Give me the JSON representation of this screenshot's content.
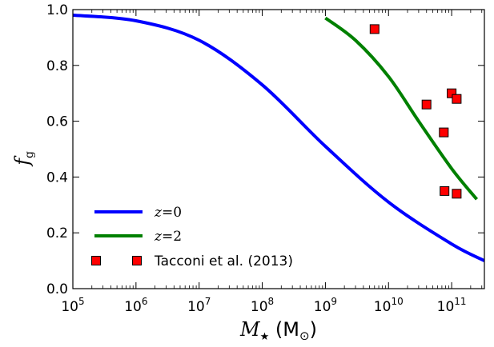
{
  "chart_data": {
    "type": "line",
    "xlabel": "M",
    "xlabel_sub": "★",
    "xlabel_unit": "(M",
    "xlabel_unit_sub": "⊙",
    "xlabel_close": ")",
    "ylabel": "f",
    "ylabel_sub": "g",
    "x_scale": "log",
    "xlim": [
      100000,
      330000000000
    ],
    "ylim": [
      0.0,
      1.0
    ],
    "x_ticks": [
      {
        "base": "10",
        "exp": "5",
        "value": 100000
      },
      {
        "base": "10",
        "exp": "6",
        "value": 1000000
      },
      {
        "base": "10",
        "exp": "7",
        "value": 10000000
      },
      {
        "base": "10",
        "exp": "8",
        "value": 100000000
      },
      {
        "base": "10",
        "exp": "9",
        "value": 1000000000
      },
      {
        "base": "10",
        "exp": "10",
        "value": 10000000000
      },
      {
        "base": "10",
        "exp": "11",
        "value": 100000000000
      }
    ],
    "y_ticks": [
      "0.0",
      "0.2",
      "0.4",
      "0.6",
      "0.8",
      "1.0"
    ],
    "grid": false,
    "legend_position": "lower-left",
    "series": [
      {
        "name": "z=0",
        "name_var": "z",
        "name_eq": "=",
        "name_val": "0",
        "kind": "line",
        "color": "#0000ff",
        "x": [
          100000,
          1000000,
          10000000,
          100000000,
          1000000000,
          10000000000,
          100000000000,
          330000000000
        ],
        "y": [
          0.98,
          0.96,
          0.89,
          0.73,
          0.51,
          0.31,
          0.16,
          0.1
        ]
      },
      {
        "name": "z=2",
        "name_var": "z",
        "name_eq": "=",
        "name_val": "2",
        "kind": "line",
        "color": "#008000",
        "x": [
          1000000000,
          3000000000,
          10000000000,
          30000000000,
          100000000000,
          250000000000
        ],
        "y": [
          0.97,
          0.89,
          0.76,
          0.6,
          0.43,
          0.32
        ]
      },
      {
        "name": "Tacconi et al. (2013)",
        "kind": "scatter",
        "color": "#ff0000",
        "marker": "square",
        "x": [
          6000000000,
          40000000000,
          75000000000,
          100000000000,
          120000000000,
          77000000000,
          120000000000
        ],
        "y": [
          0.93,
          0.66,
          0.56,
          0.7,
          0.68,
          0.35,
          0.34
        ]
      }
    ]
  }
}
